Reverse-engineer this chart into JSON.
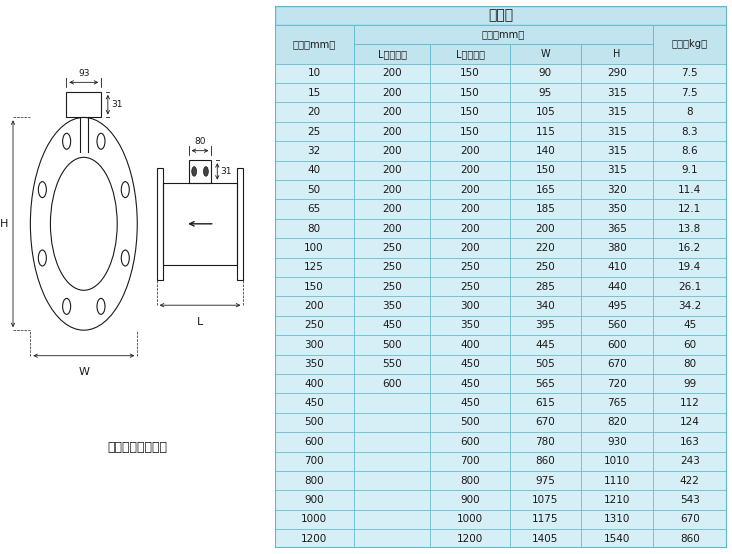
{
  "title": "分体式",
  "rows": [
    [
      "10",
      "200",
      "150",
      "90",
      "290",
      "7.5"
    ],
    [
      "15",
      "200",
      "150",
      "95",
      "315",
      "7.5"
    ],
    [
      "20",
      "200",
      "150",
      "105",
      "315",
      "8"
    ],
    [
      "25",
      "200",
      "150",
      "115",
      "315",
      "8.3"
    ],
    [
      "32",
      "200",
      "200",
      "140",
      "315",
      "8.6"
    ],
    [
      "40",
      "200",
      "200",
      "150",
      "315",
      "9.1"
    ],
    [
      "50",
      "200",
      "200",
      "165",
      "320",
      "11.4"
    ],
    [
      "65",
      "200",
      "200",
      "185",
      "350",
      "12.1"
    ],
    [
      "80",
      "200",
      "200",
      "200",
      "365",
      "13.8"
    ],
    [
      "100",
      "250",
      "200",
      "220",
      "380",
      "16.2"
    ],
    [
      "125",
      "250",
      "250",
      "250",
      "410",
      "19.4"
    ],
    [
      "150",
      "250",
      "250",
      "285",
      "440",
      "26.1"
    ],
    [
      "200",
      "350",
      "300",
      "340",
      "495",
      "34.2"
    ],
    [
      "250",
      "450",
      "350",
      "395",
      "560",
      "45"
    ],
    [
      "300",
      "500",
      "400",
      "445",
      "600",
      "60"
    ],
    [
      "350",
      "550",
      "450",
      "505",
      "670",
      "80"
    ],
    [
      "400",
      "600",
      "450",
      "565",
      "720",
      "99"
    ],
    [
      "450",
      "",
      "450",
      "615",
      "765",
      "112"
    ],
    [
      "500",
      "",
      "500",
      "670",
      "820",
      "124"
    ],
    [
      "600",
      "",
      "600",
      "780",
      "930",
      "163"
    ],
    [
      "700",
      "",
      "700",
      "860",
      "1010",
      "243"
    ],
    [
      "800",
      "",
      "800",
      "975",
      "1110",
      "422"
    ],
    [
      "900",
      "",
      "900",
      "1075",
      "1210",
      "543"
    ],
    [
      "1000",
      "",
      "1000",
      "1175",
      "1310",
      "670"
    ],
    [
      "1200",
      "",
      "1200",
      "1405",
      "1540",
      "860"
    ]
  ],
  "table_bg": "#d6eef5",
  "table_header_bg": "#c2e4ef",
  "border_color": "#5bbcd0",
  "text_color": "#1a1a1a",
  "diagram_label": "法兰形（分体型）",
  "fig_bg": "#ffffff",
  "dim93": "93",
  "dim80": "80",
  "dim31a": "31",
  "dim31b": "31",
  "label_H": "H",
  "label_W": "W",
  "label_L": "L",
  "col_header_diam": "口径（mm）",
  "col_header_dim": "尺寸（mm）",
  "col_header_weight": "重量（kg）",
  "sub_L4": "L（四氟）",
  "sub_Lrub": "L（橡胶）",
  "sub_W": "W",
  "sub_H": "H"
}
